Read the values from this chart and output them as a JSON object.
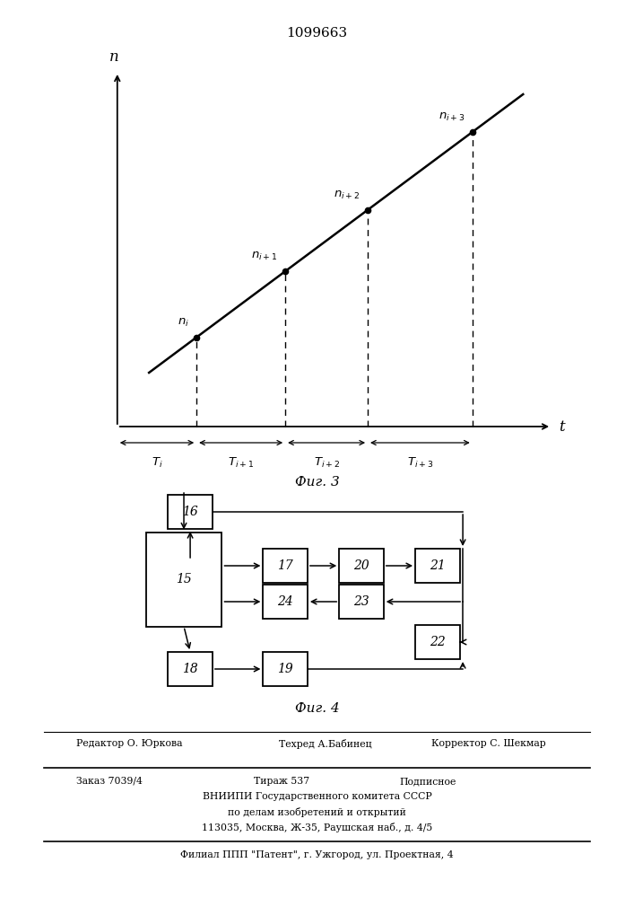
{
  "patent_number": "1099663",
  "fig3_caption": "Фиг. 3",
  "fig4_caption": "Фиг. 4",
  "footer_editor": "Редактор О. Юркова",
  "footer_techred": "Техред А.Бабинец",
  "footer_corrector": "Корректор С. Шекмар",
  "footer_zakaz": "Заказ 7039/4",
  "footer_tirazh": "Тираж 537",
  "footer_podpisnoe": "Подписное",
  "footer_vniipи": "ВНИИПИ Государственного комитета СССР",
  "footer_dela": "по делам изобретений и открытий",
  "footer_addr": "113035, Москва, Ж-35, Раушская наб., д. 4/5",
  "footer_filial": "Филиал ППП \"Патент\", г. Ужгород, ул. Проектная, 4"
}
